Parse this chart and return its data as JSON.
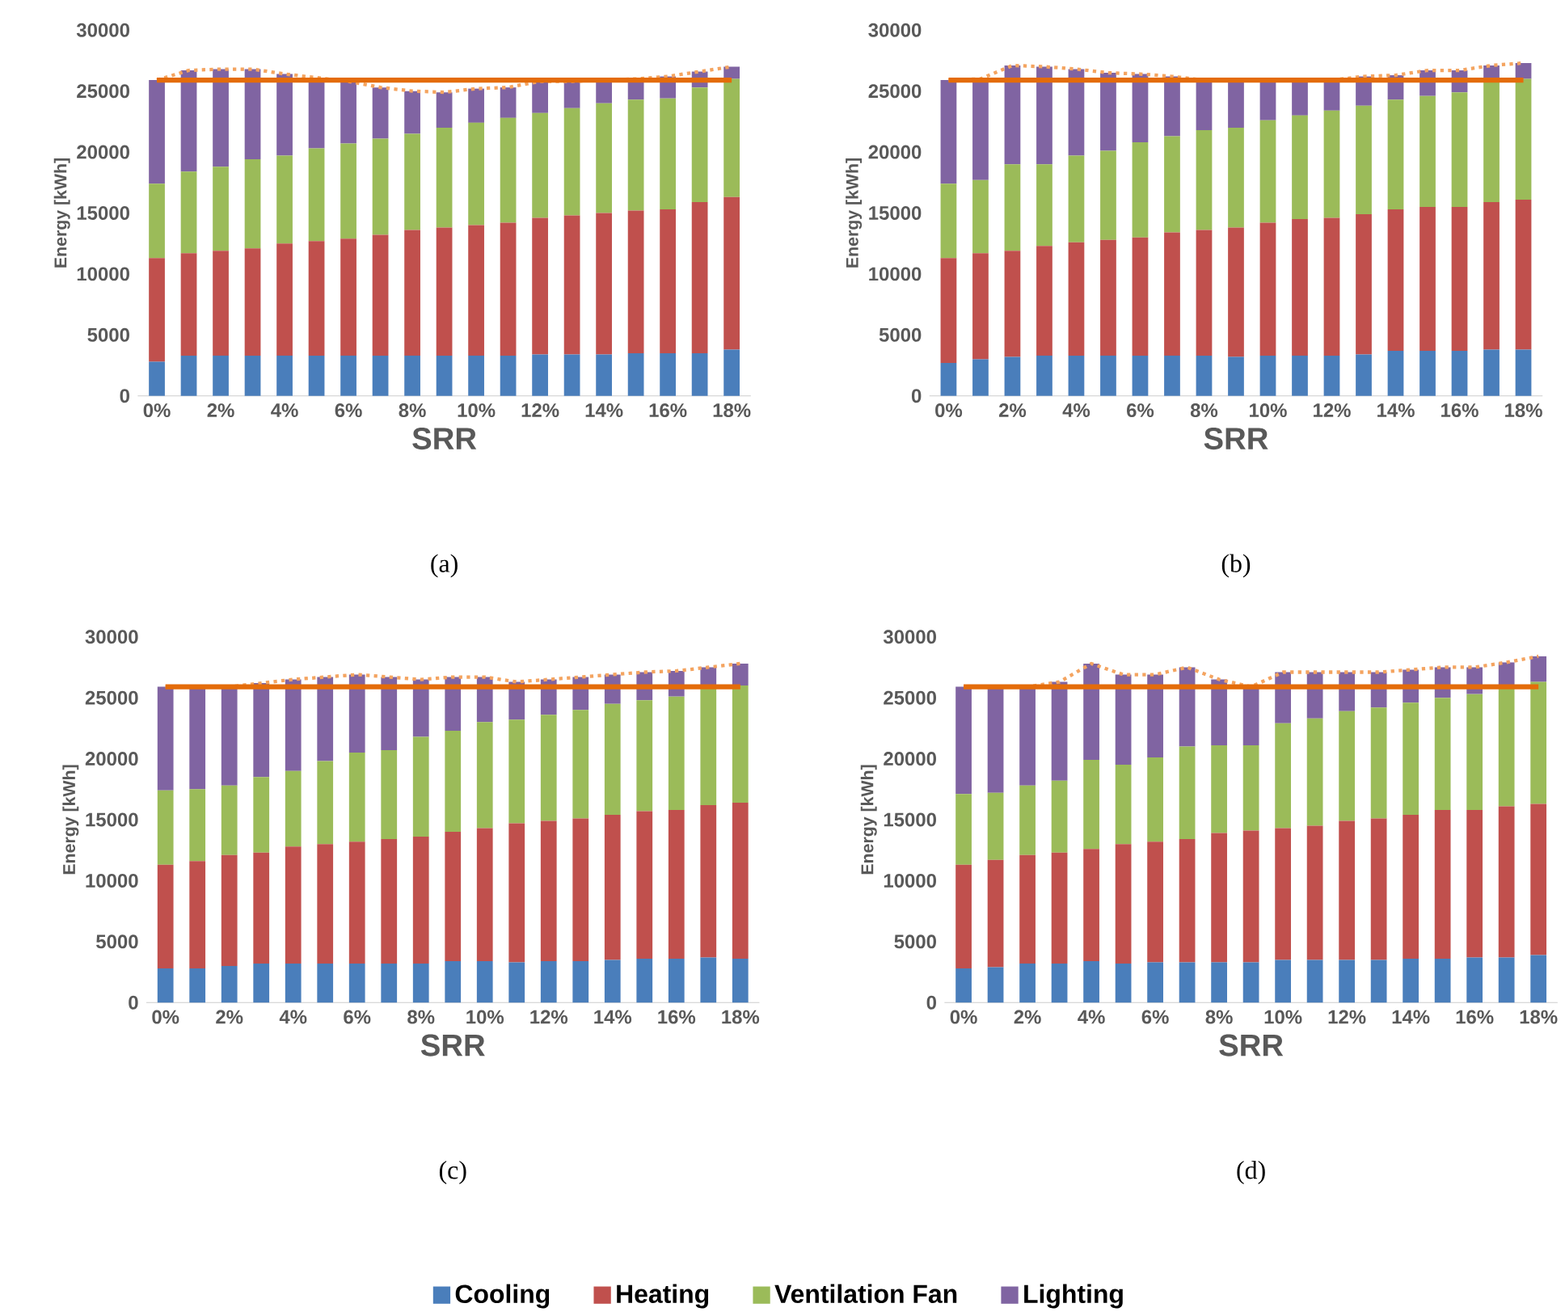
{
  "chart_data": [
    {
      "type": "bar",
      "title": "(a)",
      "xlabel": "SRR",
      "ylabel": "Energy [kWh]",
      "stacked": true,
      "ylim": [
        0,
        30000
      ],
      "yticks": [
        0,
        5000,
        10000,
        15000,
        20000,
        25000,
        30000
      ],
      "categories": [
        "0%",
        null,
        "2%",
        null,
        "4%",
        null,
        "6%",
        null,
        "8%",
        null,
        "10%",
        null,
        "12%",
        null,
        "14%",
        null,
        "16%",
        null,
        "18%"
      ],
      "series": [
        {
          "color": "#4a7ebb",
          "values": [
            2800,
            3300,
            3300,
            3300,
            3300,
            3300,
            3300,
            3300,
            3300,
            3300,
            3300,
            3300,
            3400,
            3400,
            3400,
            3500,
            3500,
            3500,
            3800
          ]
        },
        {
          "color": "#c0504d",
          "values": [
            8500,
            8400,
            8600,
            8800,
            9200,
            9400,
            9600,
            9900,
            10300,
            10500,
            10700,
            10900,
            11200,
            11400,
            11600,
            11700,
            11800,
            12400,
            12500
          ]
        },
        {
          "color": "#9bbb59",
          "values": [
            6100,
            6700,
            6900,
            7300,
            7200,
            7600,
            7800,
            7900,
            7900,
            8200,
            8400,
            8600,
            8600,
            8800,
            9000,
            9100,
            9100,
            9400,
            9700
          ]
        },
        {
          "color": "#8064a2",
          "values": [
            8500,
            8300,
            8000,
            7400,
            6700,
            5800,
            5100,
            4200,
            3500,
            2900,
            2800,
            2500,
            2600,
            2200,
            1900,
            1700,
            1800,
            1300,
            1000
          ]
        },
        {
          "type": "line",
          "color": "#f4a460",
          "line_style": "dotted",
          "values": [
            25900,
            26700,
            26800,
            26800,
            26400,
            26100,
            25800,
            25300,
            25000,
            24900,
            25200,
            25300,
            25800,
            25800,
            25900,
            26000,
            26200,
            26600,
            27000
          ]
        }
      ],
      "ref_lines": [
        {
          "axis": "y",
          "value": 25900,
          "color": "#e46c0a"
        }
      ]
    },
    {
      "type": "bar",
      "title": "(b)",
      "xlabel": "SRR",
      "ylabel": "Energy [kWh]",
      "stacked": true,
      "ylim": [
        0,
        30000
      ],
      "yticks": [
        0,
        5000,
        10000,
        15000,
        20000,
        25000,
        30000
      ],
      "categories": [
        "0%",
        null,
        "2%",
        null,
        "4%",
        null,
        "6%",
        null,
        "8%",
        null,
        "10%",
        null,
        "12%",
        null,
        "14%",
        null,
        "16%",
        null,
        "18%"
      ],
      "series": [
        {
          "color": "#4a7ebb",
          "values": [
            2700,
            3000,
            3200,
            3300,
            3300,
            3300,
            3300,
            3300,
            3300,
            3200,
            3300,
            3300,
            3300,
            3400,
            3700,
            3700,
            3700,
            3800,
            3800
          ]
        },
        {
          "color": "#c0504d",
          "values": [
            8600,
            8700,
            8700,
            9000,
            9300,
            9500,
            9700,
            10100,
            10300,
            10600,
            10900,
            11200,
            11300,
            11500,
            11600,
            11800,
            11800,
            12100,
            12300
          ]
        },
        {
          "color": "#9bbb59",
          "values": [
            6100,
            6000,
            7100,
            6700,
            7100,
            7300,
            7800,
            7900,
            8200,
            8200,
            8400,
            8500,
            8800,
            8900,
            9000,
            9100,
            9400,
            9800,
            9900
          ]
        },
        {
          "color": "#8064a2",
          "values": [
            8500,
            8300,
            8100,
            8000,
            7100,
            6400,
            5600,
            4900,
            4100,
            3900,
            3300,
            2900,
            2500,
            2400,
            2000,
            2100,
            1800,
            1400,
            1300
          ]
        },
        {
          "type": "line",
          "color": "#f4a460",
          "line_style": "dotted",
          "values": [
            25900,
            26000,
            27100,
            27000,
            26800,
            26500,
            26400,
            26200,
            25900,
            25900,
            25900,
            25900,
            25900,
            26200,
            26300,
            26700,
            26700,
            27100,
            27300
          ]
        }
      ],
      "ref_lines": [
        {
          "axis": "y",
          "value": 25900,
          "color": "#e46c0a"
        }
      ]
    },
    {
      "type": "bar",
      "title": "(c)",
      "xlabel": "SRR",
      "ylabel": "Energy [kWh]",
      "stacked": true,
      "ylim": [
        0,
        30000
      ],
      "yticks": [
        0,
        5000,
        10000,
        15000,
        20000,
        25000,
        30000
      ],
      "legend": "bottom",
      "categories": [
        "0%",
        null,
        "2%",
        null,
        "4%",
        null,
        "6%",
        null,
        "8%",
        null,
        "10%",
        null,
        "12%",
        null,
        "14%",
        null,
        "16%",
        null,
        "18%"
      ],
      "series": [
        {
          "name": "Cooling",
          "color": "#4a7ebb",
          "values": [
            2800,
            2800,
            3000,
            3200,
            3200,
            3200,
            3200,
            3200,
            3200,
            3400,
            3400,
            3300,
            3400,
            3400,
            3500,
            3600,
            3600,
            3700,
            3600
          ]
        },
        {
          "name": "Heating",
          "color": "#c0504d",
          "values": [
            8500,
            8800,
            9100,
            9100,
            9600,
            9800,
            10000,
            10200,
            10400,
            10600,
            10900,
            11400,
            11500,
            11700,
            11900,
            12100,
            12200,
            12500,
            12800
          ]
        },
        {
          "name": "Ventilation Fan",
          "color": "#9bbb59",
          "values": [
            6100,
            5900,
            5700,
            6200,
            6200,
            6800,
            7300,
            7300,
            8200,
            8300,
            8700,
            8500,
            8700,
            8900,
            9100,
            9100,
            9300,
            9700,
            9600
          ]
        },
        {
          "name": "Lighting",
          "color": "#8064a2",
          "values": [
            8500,
            8400,
            8100,
            7700,
            7500,
            6900,
            6400,
            6000,
            4700,
            4400,
            3700,
            3100,
            2900,
            2700,
            2400,
            2300,
            2100,
            1600,
            1800
          ]
        },
        {
          "type": "line",
          "color": "#f4a460",
          "line_style": "dotted",
          "values": [
            25900,
            25900,
            25900,
            26200,
            26500,
            26700,
            26900,
            26700,
            26500,
            26700,
            26700,
            26300,
            26500,
            26700,
            26900,
            27100,
            27200,
            27500,
            27800
          ]
        }
      ],
      "ref_lines": [
        {
          "axis": "y",
          "value": 25900,
          "color": "#e46c0a"
        }
      ]
    },
    {
      "type": "bar",
      "title": "(d)",
      "xlabel": "SRR",
      "ylabel": "Energy [kWh]",
      "stacked": true,
      "ylim": [
        0,
        30000
      ],
      "yticks": [
        0,
        5000,
        10000,
        15000,
        20000,
        25000,
        30000
      ],
      "categories": [
        "0%",
        null,
        "2%",
        null,
        "4%",
        null,
        "6%",
        null,
        "8%",
        null,
        "10%",
        null,
        "12%",
        null,
        "14%",
        null,
        "16%",
        null,
        "18%"
      ],
      "series": [
        {
          "color": "#4a7ebb",
          "values": [
            2800,
            2900,
            3200,
            3200,
            3400,
            3200,
            3300,
            3300,
            3300,
            3300,
            3500,
            3500,
            3500,
            3500,
            3600,
            3600,
            3700,
            3700,
            3900
          ]
        },
        {
          "color": "#c0504d",
          "values": [
            8500,
            8800,
            8900,
            9100,
            9200,
            9800,
            9900,
            10100,
            10600,
            10800,
            10800,
            11000,
            11400,
            11600,
            11800,
            12200,
            12100,
            12400,
            12400
          ]
        },
        {
          "color": "#9bbb59",
          "values": [
            5800,
            5500,
            5700,
            5900,
            7300,
            6500,
            6900,
            7600,
            7200,
            7000,
            8600,
            8800,
            9000,
            9100,
            9200,
            9200,
            9500,
            9800,
            10000
          ]
        },
        {
          "color": "#8064a2",
          "values": [
            8800,
            8700,
            8100,
            8100,
            7900,
            7400,
            6800,
            6500,
            5400,
            4800,
            4200,
            3800,
            3200,
            2900,
            2700,
            2500,
            2200,
            2000,
            2100
          ]
        },
        {
          "type": "line",
          "color": "#f4a460",
          "line_style": "dotted",
          "values": [
            25900,
            25900,
            25900,
            26300,
            27800,
            26900,
            26900,
            27500,
            26500,
            25900,
            27100,
            27100,
            27100,
            27100,
            27300,
            27500,
            27500,
            27900,
            28400
          ]
        }
      ],
      "ref_lines": [
        {
          "axis": "y",
          "value": 25900,
          "color": "#e46c0a"
        }
      ]
    }
  ]
}
